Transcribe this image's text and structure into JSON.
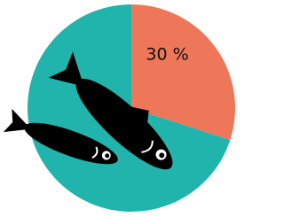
{
  "chart_data": {
    "type": "pie",
    "values": [
      30,
      70
    ],
    "value_labels": [
      "30 %",
      null
    ],
    "colors": [
      "#ee7659",
      "#20b4ac"
    ]
  }
}
